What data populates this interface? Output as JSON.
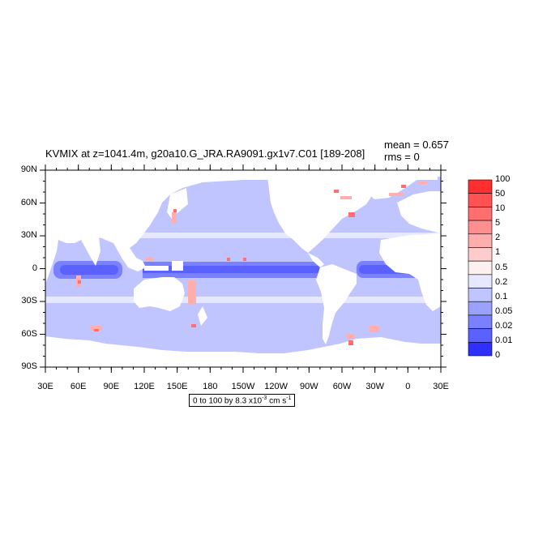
{
  "title": "KVMIX at z=1041.4m, g20a10.G_JRA.RA9091.gx1v7.C01 [189-208]",
  "stats": {
    "mean": "mean = 0.657",
    "rms": "rms = 0"
  },
  "lat_labels": [
    "90N",
    "60N",
    "30N",
    "0",
    "30S",
    "60S",
    "90S"
  ],
  "lon_labels": [
    "30E",
    "60E",
    "90E",
    "120E",
    "150E",
    "180",
    "150W",
    "120W",
    "90W",
    "60W",
    "30W",
    "0",
    "30E"
  ],
  "colorbar": {
    "labels": [
      "100",
      "50",
      "10",
      "5",
      "2",
      "1",
      "0.5",
      "0.2",
      "0.1",
      "0.05",
      "0.02",
      "0.01",
      "0"
    ],
    "colors": [
      "#ff2f2f",
      "#ff5252",
      "#ff6f6f",
      "#ff8e8e",
      "#ffadad",
      "#ffcccc",
      "#fff0f0",
      "#e6e8ff",
      "#c0c4ff",
      "#9aa1ff",
      "#7a81ff",
      "#5a61ff",
      "#2f2fff"
    ]
  },
  "units": {
    "prefix": "0 to 100 by 8.3 x10",
    "exponent": "-3",
    "suffix": " cm s",
    "suffix_exp": "-1"
  },
  "colors": {
    "ocean": "#c0c4ff",
    "equatorial_deep": "#5a61ff",
    "equatorial_mid": "#7a81ff",
    "band_light": "#e6e8ff",
    "coastal_red": "#ff6f6f",
    "coastal_pink": "#ffadad"
  }
}
